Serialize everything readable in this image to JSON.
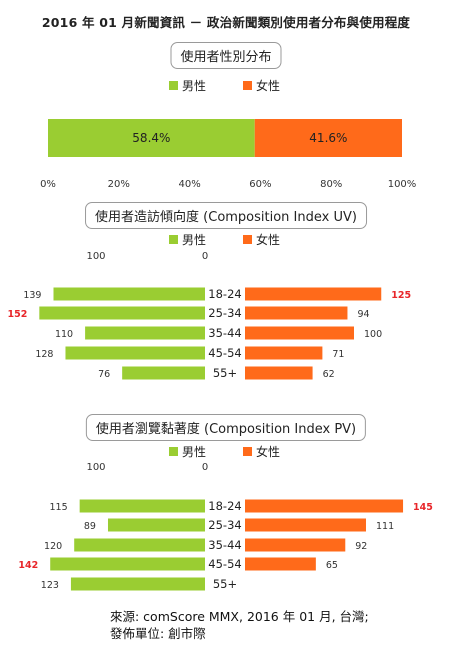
{
  "title": "2016 年 01 月新聞資訊 － 政治新聞類別使用者分布與使用程度",
  "legend": {
    "male": "男性",
    "female": "女性"
  },
  "colors": {
    "male": "#9acd32",
    "female": "#ff6a1a",
    "highlight": "#e8262a"
  },
  "source": {
    "line1": "來源: comScore MMX, 2016 年 01 月, 台灣;",
    "line2": "發佈單位: 創市際"
  },
  "chart_data": [
    {
      "type": "bar",
      "title": "使用者性別分布",
      "orientation": "horizontal-stacked",
      "series": [
        {
          "name": "男性",
          "values": [
            58.4
          ]
        },
        {
          "name": "女性",
          "values": [
            41.6
          ]
        }
      ],
      "value_labels": [
        "58.4%",
        "41.6%"
      ],
      "xlim": [
        0,
        100
      ],
      "xticks": [
        "0%",
        "20%",
        "40%",
        "60%",
        "80%",
        "100%"
      ],
      "legend_position": "top"
    },
    {
      "type": "bar",
      "title": "使用者造訪傾向度 (Composition Index UV)",
      "orientation": "diverging-horizontal",
      "categories": [
        "18-24",
        "25-34",
        "35-44",
        "45-54",
        "55+"
      ],
      "series": [
        {
          "name": "男性",
          "values": [
            139,
            152,
            110,
            128,
            76
          ]
        },
        {
          "name": "女性",
          "values": [
            125,
            94,
            100,
            71,
            62
          ]
        }
      ],
      "highlighted": {
        "男性": [
          152
        ],
        "女性": [
          125
        ]
      },
      "axis_labels": [
        "100",
        "0"
      ],
      "legend_position": "top"
    },
    {
      "type": "bar",
      "title": "使用者瀏覽黏著度 (Composition Index PV)",
      "orientation": "diverging-horizontal",
      "categories": [
        "18-24",
        "25-34",
        "35-44",
        "45-54",
        "55+"
      ],
      "series": [
        {
          "name": "男性",
          "values": [
            115,
            89,
            120,
            142,
            123
          ]
        },
        {
          "name": "女性",
          "values": [
            145,
            111,
            92,
            65,
            null
          ]
        }
      ],
      "highlighted": {
        "男性": [
          142
        ],
        "女性": [
          145
        ]
      },
      "axis_labels": [
        "100",
        "0"
      ],
      "legend_position": "top"
    }
  ]
}
